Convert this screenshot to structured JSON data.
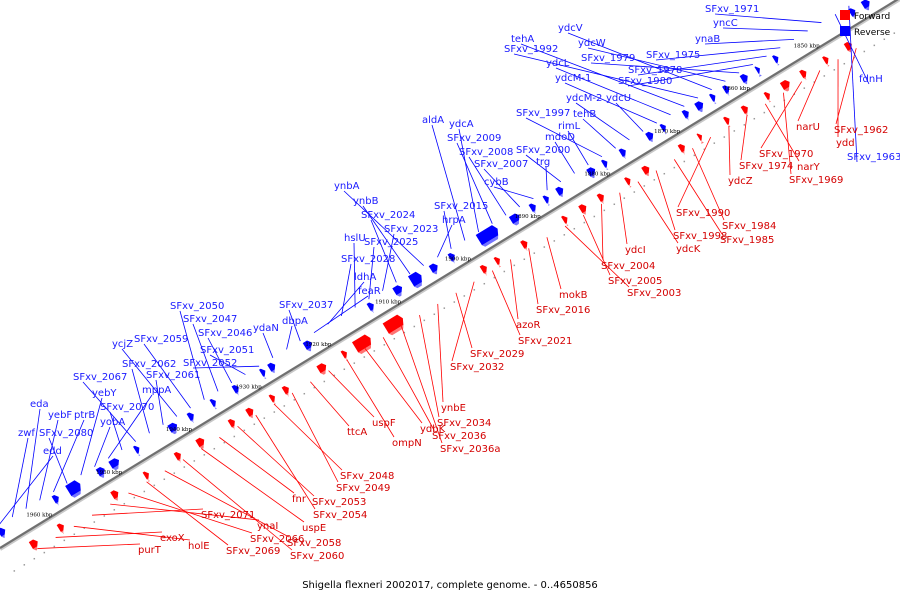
{
  "caption": "Shigella flexneri 2002017, complete genome. - 0..4650856",
  "legend": [
    {
      "label": "Forward",
      "color": "#ff0000"
    },
    {
      "label": "Reverse",
      "color": "#0000ff"
    }
  ],
  "colors": {
    "forward": "#ff0000",
    "reverse": "#0000ff",
    "forward_label": "#d40000",
    "reverse_label": "#1a1aff",
    "axis": "#808080"
  },
  "kbp_labels": [
    "1960 kbp",
    "1950 kbp",
    "1940 kbp",
    "1930 kbp",
    "1920 kbp",
    "1910 kbp",
    "1900 kbp",
    "1890 kbp",
    "1880 kbp",
    "1870 kbp",
    "1860 kbp",
    "1850 kbp"
  ],
  "forward_labels": [
    "purT",
    "exoX",
    "holE",
    "SFxv_2071",
    "ynaI",
    "SFxv_2066",
    "SFxv_2069",
    "SFxv_2058",
    "SFxv_2060",
    "uspE",
    "fnr",
    "SFxv_2053",
    "SFxv_2054",
    "SFxv_2048",
    "SFxv_2049",
    "ttcA",
    "uspF",
    "ompN",
    "ydbK",
    "SFxv_2036",
    "SFxv_2036a",
    "SFxv_2034",
    "ynbE",
    "SFxv_2029",
    "SFxv_2032",
    "SFxv_2021",
    "azoR",
    "SFxv_2016",
    "mokB",
    "SFxv_2003",
    "SFxv_2005",
    "SFxv_2004",
    "ydcI",
    "ydcK",
    "SFxv_1998",
    "SFxv_1985",
    "SFxv_1984",
    "SFxv_1990",
    "ydcZ",
    "SFxv_1974",
    "narY",
    "SFxv_1969",
    "SFxv_1970",
    "narU",
    "ydd\u0004",
    "SFxv_1962"
  ],
  "reverse_labels": [
    "edd",
    "zwf",
    "eda",
    "yebF",
    "ptrB",
    "SFxv_2080",
    "yebY",
    "yobA",
    "mppA",
    "SFxv_2070",
    "SFxv_2067",
    "SFxv_2062",
    "SFxv_2061",
    "ycjZ",
    "SFxv_2059",
    "SFxv_2050",
    "SFxv_2047",
    "SFxv_2046",
    "SFxv_2051",
    "SFxv_2052",
    "ydaN",
    "dbpA",
    "SFxv_2037",
    "feaR",
    "ldhA",
    "SFxv_2028",
    "hslU",
    "SFxv_2025",
    "SFxv_2023",
    "SFxv_2024",
    "ynbB",
    "ynbA",
    "hrpA",
    "SFxv_2015",
    "aldA",
    "ydcA",
    "SFxv_2009",
    "SFxv_2008",
    "SFxv_2007",
    "cybB",
    "trg",
    "SFxv_2000",
    "mdoD",
    "rimL",
    "SFxv_1997",
    "tehB",
    "ydcM-2",
    "ydcU",
    "ydcM-1",
    "ydcL",
    "tehA",
    "SFxv_1992",
    "ydcV",
    "ydcW",
    "SFxv_1979",
    "SFxv_1980",
    "SFxv_1978",
    "SFxv_1975",
    "ynaB",
    "yncC",
    "SFxv_1971",
    "fdnH",
    "SFxv_1963"
  ]
}
